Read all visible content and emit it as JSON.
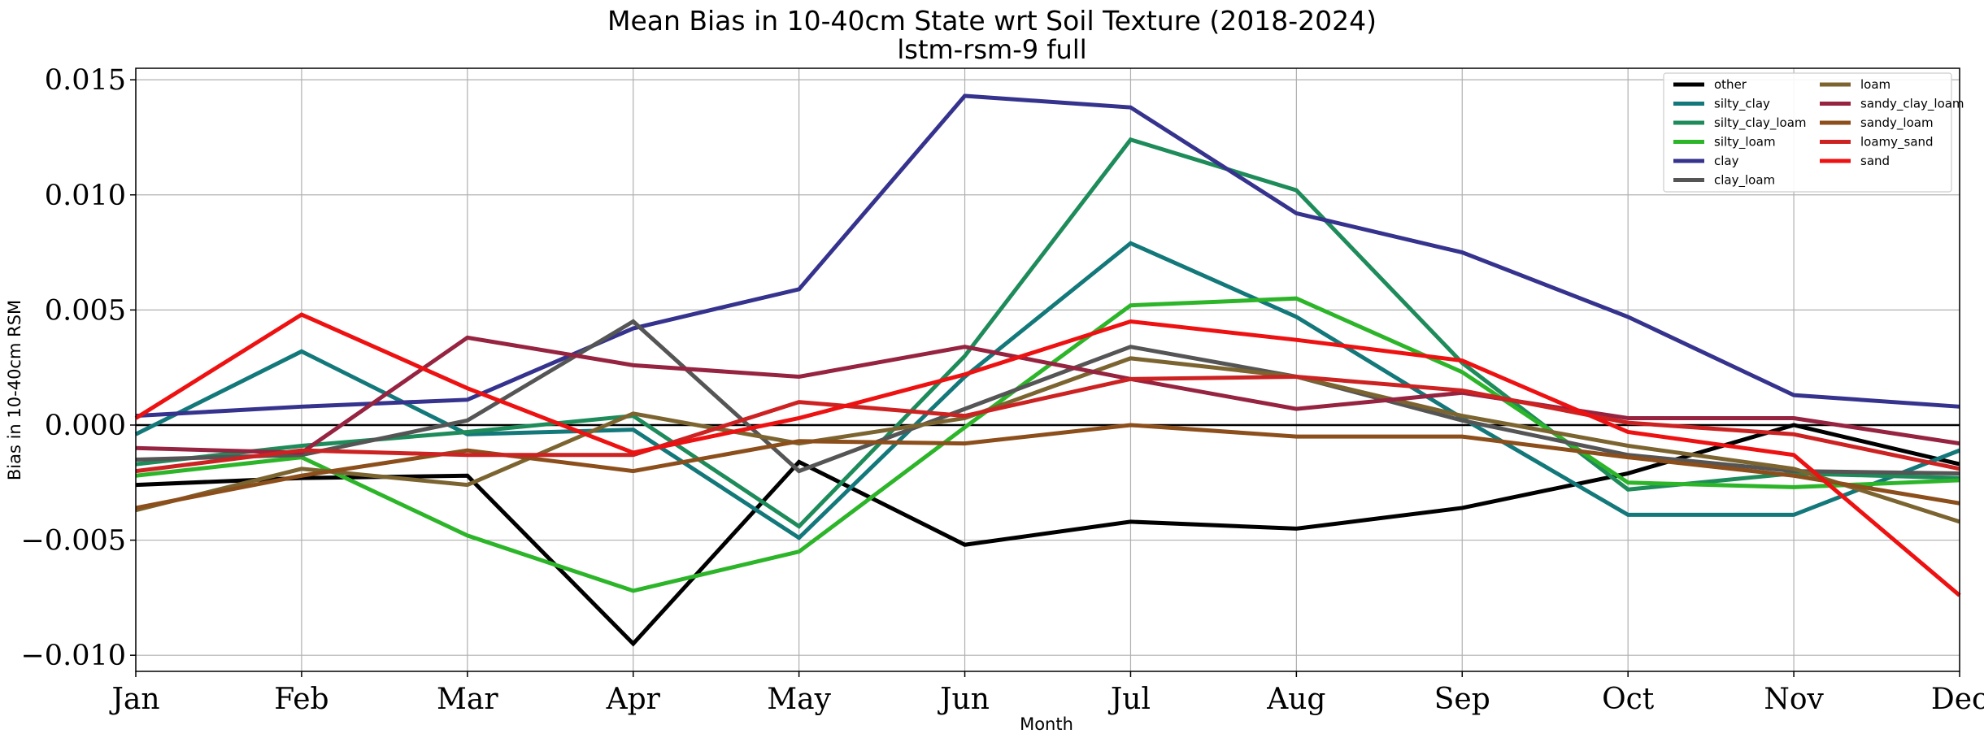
{
  "chart_data": {
    "type": "line",
    "title": "Mean Bias in 10-40cm State wrt Soil Texture (2018-2024)",
    "subtitle": "lstm-rsm-9 full",
    "xlabel": "Month",
    "ylabel": "Bias in 10-40cm RSM",
    "categories": [
      "Jan",
      "Feb",
      "Mar",
      "Apr",
      "May",
      "Jun",
      "Jul",
      "Aug",
      "Sep",
      "Oct",
      "Nov",
      "Dec"
    ],
    "ylim": [
      -0.0107,
      0.0155
    ],
    "yticks": [
      -0.01,
      -0.005,
      0.0,
      0.005,
      0.01,
      0.015
    ],
    "ytick_labels": [
      "−0.010",
      "−0.005",
      "0.000",
      "0.005",
      "0.010",
      "0.015"
    ],
    "grid": true,
    "zero_line": true,
    "legend_position": "top-right",
    "legend_columns": 2,
    "series": [
      {
        "name": "other",
        "color": "#000000",
        "values": [
          -0.0026,
          -0.0023,
          -0.0022,
          -0.0095,
          -0.0016,
          -0.0052,
          -0.0042,
          -0.0045,
          -0.0036,
          -0.0021,
          0.0,
          -0.0017
        ]
      },
      {
        "name": "silty_clay",
        "color": "#13787a",
        "values": [
          -0.0004,
          0.0032,
          -0.0004,
          -0.0002,
          -0.0049,
          0.0021,
          0.0079,
          0.0047,
          0.0003,
          -0.0039,
          -0.0039,
          -0.0011
        ]
      },
      {
        "name": "silty_clay_loam",
        "color": "#1e8b5a",
        "values": [
          -0.0017,
          -0.0009,
          -0.0003,
          0.0004,
          -0.0044,
          0.003,
          0.0124,
          0.0102,
          0.0027,
          -0.0028,
          -0.0021,
          -0.0023
        ]
      },
      {
        "name": "silty_loam",
        "color": "#2db52a",
        "values": [
          -0.0022,
          -0.0014,
          -0.0048,
          -0.0072,
          -0.0055,
          -0.0001,
          0.0052,
          0.0055,
          0.0023,
          -0.0025,
          -0.0027,
          -0.0024
        ]
      },
      {
        "name": "clay",
        "color": "#35338d",
        "values": [
          0.0004,
          0.0008,
          0.0011,
          0.0042,
          0.0059,
          0.0143,
          0.0138,
          0.0092,
          0.0075,
          0.0047,
          0.0013,
          0.0008
        ]
      },
      {
        "name": "clay_loam",
        "color": "#555555",
        "values": [
          -0.0015,
          -0.0013,
          0.0002,
          0.0045,
          -0.002,
          0.0007,
          0.0034,
          0.0021,
          0.0002,
          -0.0013,
          -0.002,
          -0.0021
        ]
      },
      {
        "name": "loam",
        "color": "#7b6430",
        "values": [
          -0.0037,
          -0.0019,
          -0.0026,
          0.0005,
          -0.0008,
          0.0003,
          0.0029,
          0.0021,
          0.0004,
          -0.0009,
          -0.0019,
          -0.0042
        ]
      },
      {
        "name": "sandy_clay_loam",
        "color": "#962340",
        "values": [
          -0.001,
          -0.0012,
          0.0038,
          0.0026,
          0.0021,
          0.0034,
          0.002,
          0.0007,
          0.0014,
          0.0003,
          0.0003,
          -0.0008
        ]
      },
      {
        "name": "sandy_loam",
        "color": "#8c4e1b",
        "values": [
          -0.0036,
          -0.0022,
          -0.0011,
          -0.002,
          -0.0007,
          -0.0008,
          0.0,
          -0.0005,
          -0.0005,
          -0.0014,
          -0.0022,
          -0.0034
        ]
      },
      {
        "name": "loamy_sand",
        "color": "#cc2222",
        "values": [
          -0.002,
          -0.0011,
          -0.0013,
          -0.0013,
          0.001,
          0.0004,
          0.002,
          0.0021,
          0.0015,
          0.0001,
          -0.0004,
          -0.0019
        ]
      },
      {
        "name": "sand",
        "color": "#ee1111",
        "values": [
          0.0003,
          0.0048,
          0.0016,
          -0.0012,
          0.0003,
          0.0022,
          0.0045,
          0.0037,
          0.0028,
          -0.0003,
          -0.0013,
          -0.0074
        ]
      }
    ]
  }
}
